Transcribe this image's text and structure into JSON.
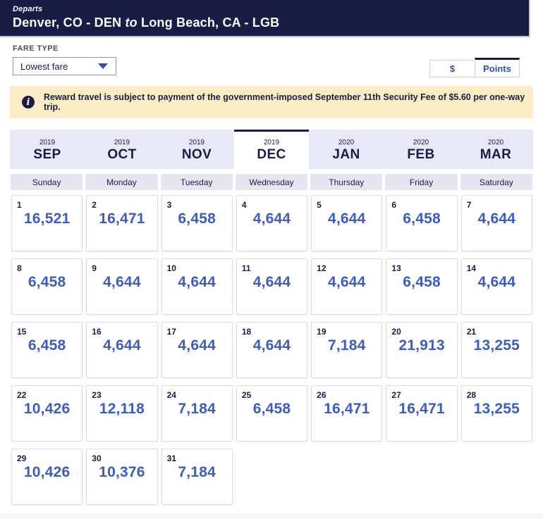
{
  "header": {
    "departs_label": "Departs",
    "route": {
      "from": "Denver, CO - DEN",
      "to_word": "to",
      "to": "Long Beach, CA - LGB"
    }
  },
  "fare_type": {
    "label": "FARE TYPE",
    "selected_option": "Lowest fare"
  },
  "currency_toggle": {
    "dollar_label": "$",
    "points_label": "Points",
    "selected": "Points"
  },
  "notice": {
    "icon": "info-icon",
    "icon_glyph": "i",
    "text": "Reward travel is subject to payment of the government-imposed September 11th Security Fee of $5.60 per one-way trip."
  },
  "month_tabs": [
    {
      "year": "2019",
      "label": "SEP",
      "selected": false
    },
    {
      "year": "2019",
      "label": "OCT",
      "selected": false
    },
    {
      "year": "2019",
      "label": "NOV",
      "selected": false
    },
    {
      "year": "2019",
      "label": "DEC",
      "selected": true
    },
    {
      "year": "2020",
      "label": "JAN",
      "selected": false
    },
    {
      "year": "2020",
      "label": "FEB",
      "selected": false
    },
    {
      "year": "2020",
      "label": "MAR",
      "selected": false
    }
  ],
  "calendar": {
    "day_headers": [
      "Sunday",
      "Monday",
      "Tuesday",
      "Wednesday",
      "Thursday",
      "Friday",
      "Saturday"
    ],
    "fare_unit": "points",
    "days": [
      {
        "date": 1,
        "fare": "16,521"
      },
      {
        "date": 2,
        "fare": "16,471"
      },
      {
        "date": 3,
        "fare": "6,458"
      },
      {
        "date": 4,
        "fare": "4,644"
      },
      {
        "date": 5,
        "fare": "4,644"
      },
      {
        "date": 6,
        "fare": "6,458"
      },
      {
        "date": 7,
        "fare": "4,644"
      },
      {
        "date": 8,
        "fare": "6,458"
      },
      {
        "date": 9,
        "fare": "4,644"
      },
      {
        "date": 10,
        "fare": "4,644"
      },
      {
        "date": 11,
        "fare": "4,644"
      },
      {
        "date": 12,
        "fare": "4,644"
      },
      {
        "date": 13,
        "fare": "6,458"
      },
      {
        "date": 14,
        "fare": "4,644"
      },
      {
        "date": 15,
        "fare": "6,458"
      },
      {
        "date": 16,
        "fare": "4,644"
      },
      {
        "date": 17,
        "fare": "4,644"
      },
      {
        "date": 18,
        "fare": "4,644"
      },
      {
        "date": 19,
        "fare": "7,184"
      },
      {
        "date": 20,
        "fare": "21,913"
      },
      {
        "date": 21,
        "fare": "13,255"
      },
      {
        "date": 22,
        "fare": "10,426"
      },
      {
        "date": 23,
        "fare": "12,118"
      },
      {
        "date": 24,
        "fare": "7,184"
      },
      {
        "date": 25,
        "fare": "6,458"
      },
      {
        "date": 26,
        "fare": "16,471"
      },
      {
        "date": 27,
        "fare": "16,471"
      },
      {
        "date": 28,
        "fare": "13,255"
      },
      {
        "date": 29,
        "fare": "10,426"
      },
      {
        "date": 30,
        "fare": "10,376"
      },
      {
        "date": 31,
        "fare": "7,184"
      }
    ]
  },
  "colors": {
    "navy": "#171D44",
    "fare_blue": "#3B5CC6",
    "tab_bg": "#E7E9F6",
    "banner_bg": "#FAEDC6"
  }
}
